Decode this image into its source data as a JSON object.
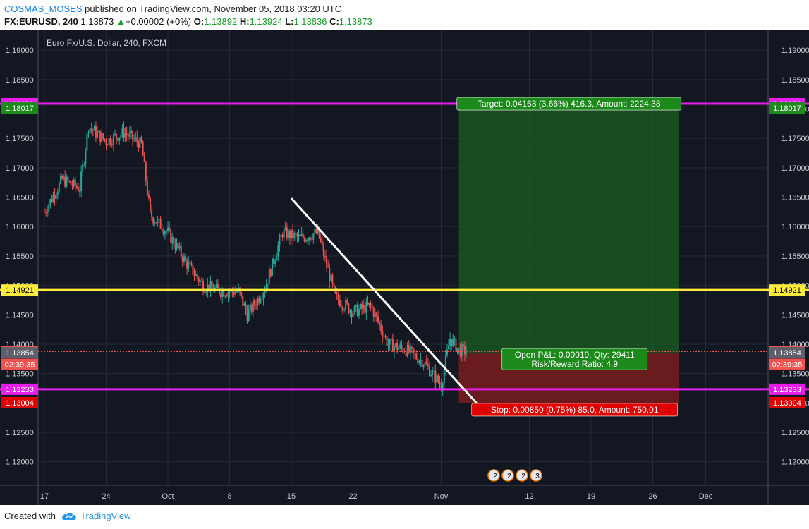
{
  "header": {
    "author": "COSMAS_MOSES",
    "published_text": "published on TradingView.com, November 05, 2018 03:20 UTC",
    "symbol": "FX:EURUSD, 240",
    "last": "1.13873",
    "change_icon": "up-triangle-icon",
    "change": "+0.00002 (+0%)",
    "o_label": "O:",
    "o_val": "1.13892",
    "h_label": "H:",
    "h_val": "1.13924",
    "l_label": "L:",
    "l_val": "1.13836",
    "c_label": "C:",
    "c_val": "1.13873"
  },
  "footer": {
    "created_with": "Created with",
    "brand": "TradingView",
    "brand_icon": "tradingview-cloud-icon"
  },
  "colors": {
    "background": "#131722",
    "up": "#26a69a",
    "down": "#ef5350",
    "magenta": "#e91eed",
    "yellow": "#ffeb3b",
    "target_zone": "#1b5e20",
    "stop_zone": "#7f1d1d"
  },
  "chart_data": {
    "type": "candlestick",
    "title": "Euro Fx/U.S. Dollar, 240, FXCM",
    "ylim": [
      1.116,
      1.1935
    ],
    "y_ticks": [
      "1.19000",
      "1.18500",
      "1.18000",
      "1.17500",
      "1.17000",
      "1.16500",
      "1.16000",
      "1.15500",
      "1.15000",
      "1.14500",
      "1.14000",
      "1.13500",
      "1.13000",
      "1.12500",
      "1.12000"
    ],
    "x_ticks": [
      "17",
      "24",
      "Oct",
      "8",
      "15",
      "22",
      "Nov",
      "12",
      "19",
      "26",
      "Dec"
    ],
    "close_path": [
      [
        "Sep 17",
        1.1625
      ],
      [
        "Sep 19",
        1.168
      ],
      [
        "Sep 21",
        1.1665
      ],
      [
        "Sep 22",
        1.177
      ],
      [
        "Sep 24",
        1.1745
      ],
      [
        "Sep 26",
        1.176
      ],
      [
        "Sep 28",
        1.174
      ],
      [
        "Sep 29",
        1.162
      ],
      [
        "Oct 1",
        1.159
      ],
      [
        "Oct 3",
        1.154
      ],
      [
        "Oct 5",
        1.15
      ],
      [
        "Oct 7",
        1.149
      ],
      [
        "Oct 9",
        1.149
      ],
      [
        "Oct 10",
        1.145
      ],
      [
        "Oct 12",
        1.1495
      ],
      [
        "Oct 14",
        1.159
      ],
      [
        "Oct 16",
        1.158
      ],
      [
        "Oct 18",
        1.159
      ],
      [
        "Oct 20",
        1.148
      ],
      [
        "Oct 22",
        1.1455
      ],
      [
        "Oct 24",
        1.1465
      ],
      [
        "Oct 26",
        1.14
      ],
      [
        "Oct 28",
        1.139
      ],
      [
        "Oct 30",
        1.137
      ],
      [
        "Nov 1",
        1.133
      ],
      [
        "Nov 2",
        1.141
      ],
      [
        "Nov 3",
        1.139
      ],
      [
        "Nov 4",
        1.13873
      ]
    ],
    "horizontal_lines": [
      {
        "price": 1.18091,
        "label": "1.18091",
        "color": "#e91eed"
      },
      {
        "price": 1.14921,
        "label": "1.14921",
        "color": "#ffeb3b"
      },
      {
        "price": 1.13233,
        "label": "1.13233",
        "color": "#e91eed"
      }
    ],
    "price_labels": [
      {
        "price": 1.18017,
        "text": "1.18017",
        "bg": "#1b8a1b"
      },
      {
        "price": 1.13873,
        "text": "1.13873",
        "bg": "#ef5350"
      },
      {
        "price": 1.13873,
        "text": "02:39:35",
        "bg": "#ef5350",
        "offset": 1
      },
      {
        "price": 1.13854,
        "text": "1.13854",
        "bg": "#5d606b"
      },
      {
        "price": 1.13004,
        "text": "1.13004",
        "bg": "#e00000"
      }
    ],
    "trendline": {
      "from": [
        "Oct 15",
        1.1648
      ],
      "to": [
        "Nov 5",
        1.13
      ]
    },
    "position": {
      "entry": 1.13854,
      "target": 1.18017,
      "stop": 1.13004,
      "from": "Nov 3",
      "to": "Nov 28",
      "target_label": "Target: 0.04163 (3.66%) 416.3, Amount: 2224.38",
      "stop_label": "Stop: 0.00850 (0.75%) 85.0, Amount: 750.01",
      "pnl_line1": "Open P&L: 0.00019, Qty: 29411",
      "pnl_line2": "Risk/Reward Ratio: 4.9"
    },
    "event_badges": [
      "2",
      "2",
      "2",
      "3"
    ]
  }
}
